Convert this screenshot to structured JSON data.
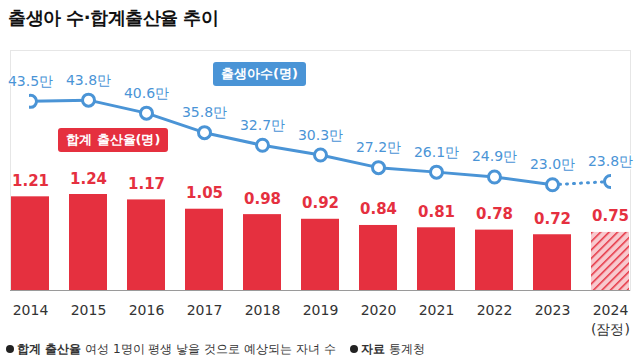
{
  "chart_data": {
    "type": "bar",
    "title": "출생아 수·합계출산율 추이",
    "categories": [
      "2014",
      "2015",
      "2016",
      "2017",
      "2018",
      "2019",
      "2020",
      "2021",
      "2022",
      "2023",
      "2024\n(잠정)"
    ],
    "series": [
      {
        "name": "합계 출산율(명)",
        "type": "bar",
        "color": "#e5303f",
        "values": [
          1.21,
          1.24,
          1.17,
          1.05,
          0.98,
          0.92,
          0.84,
          0.81,
          0.78,
          0.72,
          0.75
        ]
      },
      {
        "name": "출생아수(명)",
        "type": "line",
        "axis": "y2",
        "color": "#4a94d6",
        "marker": "circle",
        "values": [
          43.5,
          43.8,
          40.6,
          35.8,
          32.7,
          30.3,
          27.2,
          26.1,
          24.9,
          23.0,
          23.8
        ],
        "value_labels": [
          "43.5만",
          "43.8만",
          "40.6만",
          "35.8만",
          "32.7만",
          "30.3만",
          "27.2만",
          "26.1만",
          "24.9만",
          "23.0만",
          "23.8만"
        ]
      }
    ],
    "ylim": [
      0,
      3.1
    ],
    "y2lim": [
      -3,
      56
    ],
    "data_labels": true,
    "tick_labels": "x",
    "annotations": [
      {
        "label": "합계 출산율",
        "text": "여성 1명이 평생 낳을 것으로 예상되는 자녀 수"
      },
      {
        "label": "자료",
        "text": "통계청"
      }
    ]
  }
}
